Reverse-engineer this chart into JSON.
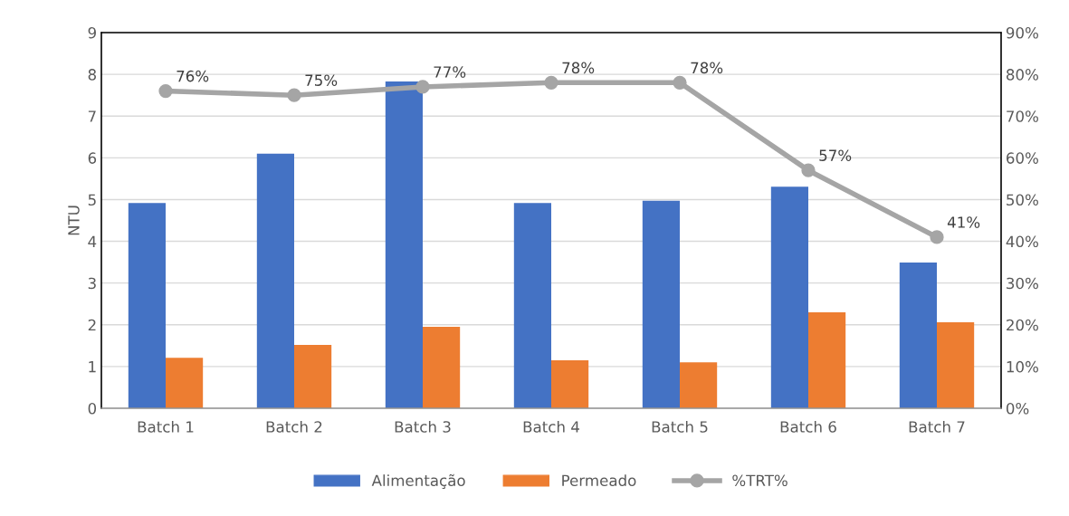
{
  "chart_data": {
    "type": "bar",
    "ylabel": "NTU",
    "categories": [
      "Batch 1",
      "Batch 2",
      "Batch 3",
      "Batch 4",
      "Batch 5",
      "Batch 6",
      "Batch 7"
    ],
    "series": [
      {
        "name": "Alimentação",
        "color": "#4472c4",
        "values": [
          4.92,
          6.1,
          7.83,
          4.92,
          4.97,
          5.31,
          3.49
        ]
      },
      {
        "name": "Permeado",
        "color": "#ed7d31",
        "values": [
          1.21,
          1.52,
          1.95,
          1.15,
          1.1,
          2.3,
          2.06
        ]
      },
      {
        "name": "%TRT%",
        "type": "line",
        "axis": "y2",
        "color": "#a5a5a5",
        "marker": "circle",
        "values": [
          76,
          75,
          77,
          78,
          78,
          57,
          41
        ],
        "value_labels": [
          "76%",
          "75%",
          "77%",
          "78%",
          "78%",
          "57%",
          "41%"
        ]
      }
    ],
    "ylim": [
      0,
      9
    ],
    "yticks": [
      0,
      1,
      2,
      3,
      4,
      5,
      6,
      7,
      8,
      9
    ],
    "y2lim": [
      0,
      90
    ],
    "y2ticks": [
      {
        "value": 0,
        "label": "0%"
      },
      {
        "value": 10,
        "label": "10%"
      },
      {
        "value": 20,
        "label": "20%"
      },
      {
        "value": 30,
        "label": "30%"
      },
      {
        "value": 40,
        "label": "40%"
      },
      {
        "value": 50,
        "label": "50%"
      },
      {
        "value": 60,
        "label": "60%"
      },
      {
        "value": 70,
        "label": "70%"
      },
      {
        "value": 80,
        "label": "80%"
      },
      {
        "value": 90,
        "label": "90%"
      }
    ],
    "grid": "y",
    "legend": "bottom"
  }
}
